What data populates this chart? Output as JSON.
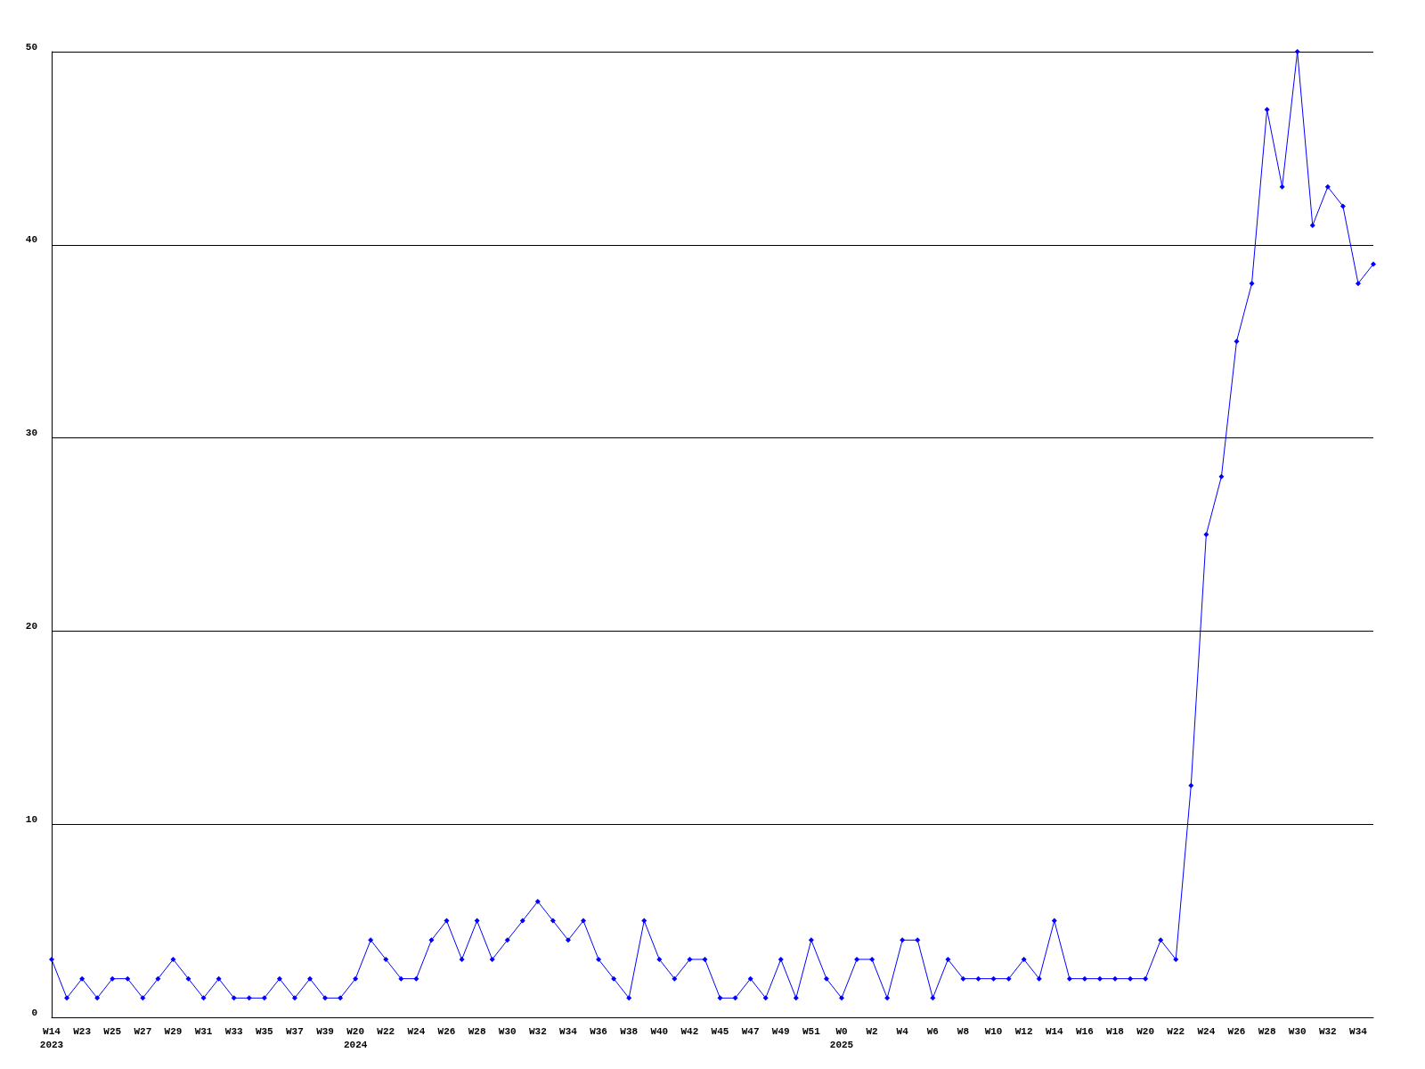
{
  "chart_data": {
    "type": "line",
    "categories": [
      "W14\n2023",
      null,
      "W23",
      null,
      "W25",
      null,
      "W27",
      null,
      "W29",
      null,
      "W31",
      null,
      "W33",
      null,
      "W35",
      null,
      "W37",
      null,
      "W39",
      null,
      "W20\n2024",
      null,
      "W22",
      null,
      "W24",
      null,
      "W26",
      null,
      "W28",
      null,
      "W30",
      null,
      "W32",
      null,
      "W34",
      null,
      "W36",
      null,
      "W38",
      null,
      "W40",
      null,
      "W42",
      null,
      "W45",
      null,
      "W47",
      null,
      "W49",
      null,
      "W51",
      null,
      "W0\n2025",
      null,
      "W2",
      null,
      "W4",
      null,
      "W6",
      null,
      "W8",
      null,
      "W10",
      null,
      "W12",
      null,
      "W14",
      null,
      "W16",
      null,
      "W18",
      null,
      "W20",
      null,
      "W22",
      null,
      "W24",
      null,
      "W26",
      null,
      "W28",
      null,
      "W30",
      null,
      "W32",
      null,
      "W34",
      null
    ],
    "series": [
      {
        "color": "#0000ff",
        "values": [
          3,
          1,
          2,
          1,
          2,
          2,
          1,
          2,
          3,
          2,
          1,
          2,
          1,
          1,
          1,
          2,
          1,
          2,
          1,
          1,
          2,
          4,
          3,
          2,
          2,
          4,
          5,
          3,
          5,
          3,
          4,
          5,
          6,
          5,
          4,
          5,
          3,
          2,
          1,
          5,
          3,
          2,
          3,
          3,
          1,
          1,
          2,
          1,
          3,
          1,
          4,
          2,
          1,
          3,
          3,
          1,
          4,
          4,
          1,
          3,
          2,
          2,
          2,
          2,
          3,
          2,
          5,
          2,
          2,
          2,
          2,
          2,
          2,
          4,
          3,
          12,
          25,
          28,
          35,
          38,
          47,
          43,
          50,
          41,
          43,
          42,
          38,
          39
        ]
      }
    ],
    "ylim": [
      0,
      50
    ],
    "yticks": [
      0,
      10,
      20,
      30,
      40,
      50
    ],
    "grid": "y",
    "marker": "diamond",
    "line_style": "solid"
  }
}
